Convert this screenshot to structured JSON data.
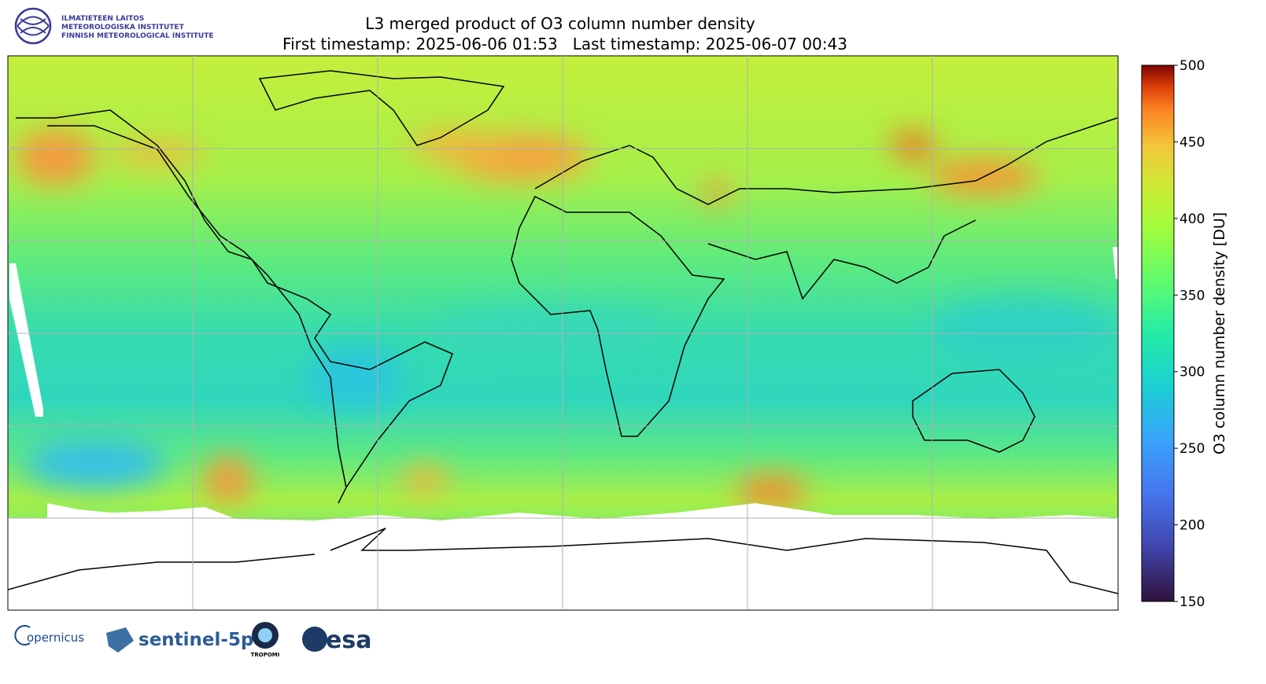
{
  "header": {
    "institute": [
      "ILMATIETEEN LAITOS",
      "METEOROLOGISKA INSTITUTET",
      "FINNISH METEOROLOGICAL INSTITUTE"
    ],
    "title": "L3 merged product of O3 column number density",
    "subtitle": "First timestamp: 2025-06-06 01:53   Last timestamp: 2025-06-07 00:43"
  },
  "colorbar": {
    "label": "O3 column number density [DU]",
    "lim": [
      150,
      500
    ],
    "ticks": [
      150,
      200,
      250,
      300,
      350,
      400,
      450,
      500
    ]
  },
  "footer": {
    "logos": [
      "opernicus",
      "sentinel-5p",
      "TROPOMI",
      "esa"
    ]
  }
}
